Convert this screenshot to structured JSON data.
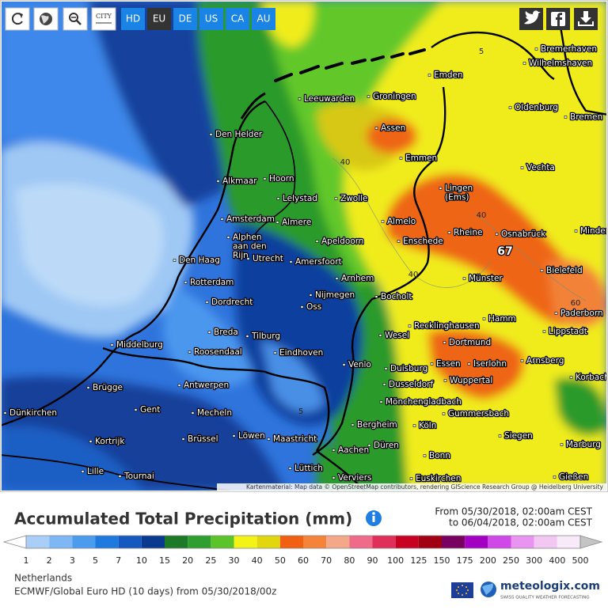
{
  "toolbar": {
    "city_icon": "CITY",
    "buttons": [
      "HD",
      "EU",
      "DE",
      "US",
      "CA",
      "AU"
    ],
    "active": "EU"
  },
  "map": {
    "places": [
      "Bremerhaven",
      "Wilhelmshaven",
      "Emden",
      "Leeuwarden",
      "Groningen",
      "Oldenburg",
      "Bremen",
      "Den Helder",
      "Assen",
      "Emmen",
      "Vechta",
      "Alkmaar",
      "Hoorn",
      "Lelystad",
      "Zwolle",
      [
        "Lingen",
        "(Ems)"
      ],
      "Amsterdam",
      "Almere",
      "Almelo",
      "Rheine",
      "Osnabrück",
      "Minden",
      [
        "Alphen",
        "aan den",
        "Rijn"
      ],
      "Enschede",
      "Apeldoorn",
      "Utrecht",
      "Amersfoort",
      "Den Haag",
      "Bielefeld",
      "Arnhem",
      "Münster",
      "Rotterdam",
      "Nijmegen",
      "Bocholt",
      "Dordrecht",
      "Oss",
      "Hamm",
      "Recklinghausen",
      "Paderborn",
      "Breda",
      "Tilburg",
      "Wesel",
      "Lippstadt",
      "Middelburg",
      "Roosendaal",
      "Dortmund",
      "Eindhoven",
      "Arnsberg",
      "Iserlohn",
      "Venlo",
      "Duisburg",
      "Essen",
      "Korbach",
      "Wuppertal",
      "Brügge",
      "Antwerpen",
      "Dusseldorf",
      "Mönchengladbach",
      "Gent",
      "Dünkirchen",
      "Mecheln",
      "Gummersbach",
      "Bergheim",
      "Köln",
      "Kortrijk",
      "Brüssel",
      "Löwen",
      "Maastricht",
      "Düren",
      "Siegen",
      "Marburg",
      "Aachen",
      "Bonn",
      "Lille",
      "Tournai",
      "Lüttich",
      "Verviers",
      "Euskirchen",
      "Gießen"
    ],
    "contour_labels": [
      "40",
      "40",
      "40",
      "60",
      "5",
      "5"
    ],
    "max_label": "67",
    "attribution": "Kartenmaterial: Map data © OpenStreetMap contributors, rendering GIScience Research Group @ Heidelberg University"
  },
  "title": "Accumulated Total Precipitation (mm)",
  "period": {
    "from": "From 05/30/2018, 02:00am CEST",
    "to": "to 06/04/2018, 02:00am CEST"
  },
  "legend": {
    "labels": [
      1,
      2,
      3,
      5,
      7,
      10,
      15,
      20,
      25,
      30,
      40,
      50,
      60,
      70,
      80,
      90,
      100,
      125,
      150,
      175,
      200,
      250,
      300,
      400,
      500
    ],
    "colors": [
      "#a9cff8",
      "#7db7f5",
      "#4b9cef",
      "#1f7ae0",
      "#1558c0",
      "#0a3a8f",
      "#1c7a26",
      "#2e9e2e",
      "#5bc42a",
      "#f3f318",
      "#e2d60c",
      "#f06010",
      "#f5843a",
      "#f5a888",
      "#f06a8a",
      "#e0305a",
      "#c80022",
      "#a00012",
      "#7a0060",
      "#a400c4",
      "#d048e8",
      "#e894f0",
      "#f2c8f2",
      "#f8eaf8"
    ],
    "low_color": "#ffffff",
    "high_color": "#c4c4c4"
  },
  "footer": {
    "region": "Netherlands",
    "model": "ECMWF/Global Euro HD (10 days) from 05/30/2018/00z",
    "brand": "meteologix.com",
    "tagline": "SWISS QUALITY WEATHER FORECASTING"
  }
}
